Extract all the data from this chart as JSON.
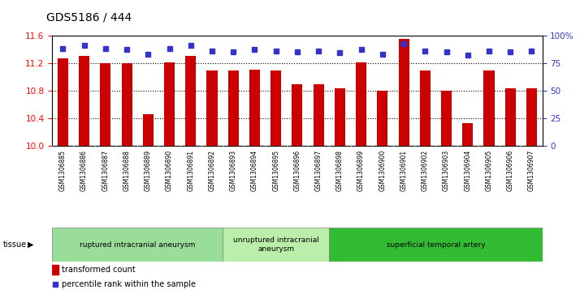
{
  "title": "GDS5186 / 444",
  "samples": [
    "GSM1306885",
    "GSM1306886",
    "GSM1306887",
    "GSM1306888",
    "GSM1306889",
    "GSM1306890",
    "GSM1306891",
    "GSM1306892",
    "GSM1306893",
    "GSM1306894",
    "GSM1306895",
    "GSM1306896",
    "GSM1306897",
    "GSM1306898",
    "GSM1306899",
    "GSM1306900",
    "GSM1306901",
    "GSM1306902",
    "GSM1306903",
    "GSM1306904",
    "GSM1306905",
    "GSM1306906",
    "GSM1306907"
  ],
  "bar_values": [
    11.27,
    11.3,
    11.19,
    11.2,
    10.46,
    11.21,
    11.3,
    11.09,
    11.09,
    11.1,
    11.09,
    10.89,
    10.89,
    10.83,
    11.21,
    10.79,
    11.55,
    11.09,
    10.8,
    10.32,
    11.09,
    10.83,
    10.83
  ],
  "percentile_values": [
    88,
    91,
    88,
    87,
    83,
    88,
    91,
    86,
    85,
    87,
    86,
    85,
    86,
    84,
    87,
    83,
    92,
    86,
    85,
    82,
    86,
    85,
    86
  ],
  "ylim_left": [
    10.0,
    11.6
  ],
  "ylim_right": [
    0,
    100
  ],
  "yticks_left": [
    10.0,
    10.4,
    10.8,
    11.2,
    11.6
  ],
  "yticks_right": [
    0,
    25,
    50,
    75,
    100
  ],
  "bar_color": "#cc0000",
  "dot_color": "#3333cc",
  "plot_bg": "#ffffff",
  "xtick_bg": "#d0d0d0",
  "tissue_groups": [
    {
      "label": "ruptured intracranial aneurysm",
      "start": 0,
      "end": 8,
      "color": "#99dd99"
    },
    {
      "label": "unruptured intracranial\naneurysm",
      "start": 8,
      "end": 13,
      "color": "#bbeeaa"
    },
    {
      "label": "superficial temporal artery",
      "start": 13,
      "end": 23,
      "color": "#33bb33"
    }
  ],
  "legend_bar_label": "transformed count",
  "legend_dot_label": "percentile rank within the sample",
  "tissue_label": "tissue"
}
